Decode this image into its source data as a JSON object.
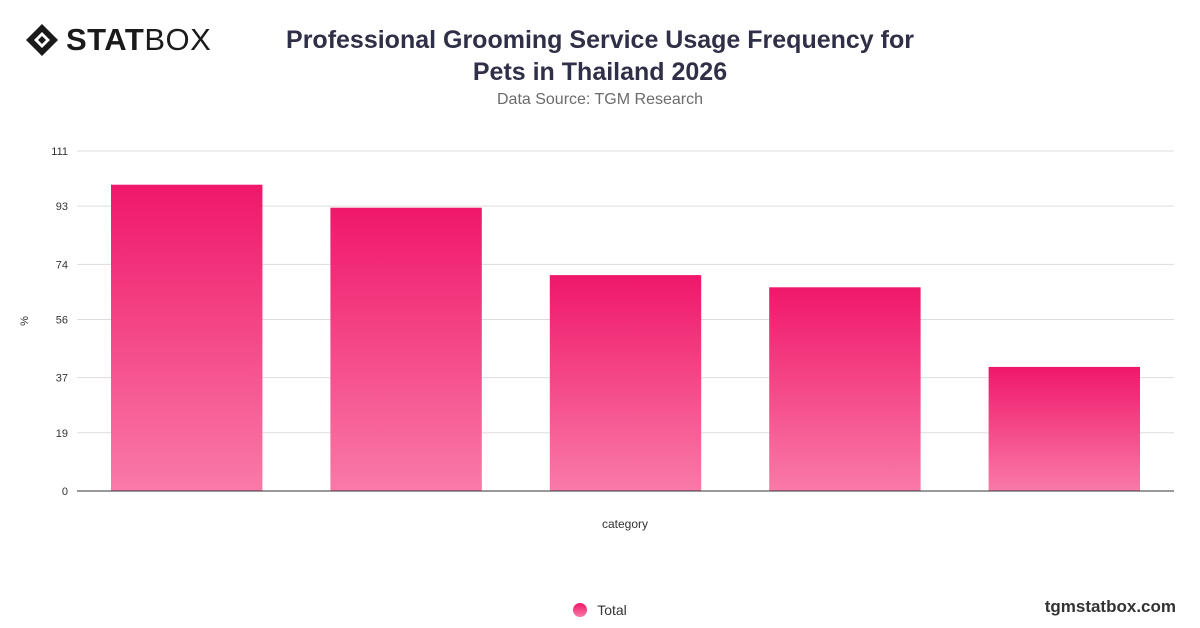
{
  "brand": {
    "logo_bold": "STAT",
    "logo_light": "BOX",
    "website": "tgmstatbox.com"
  },
  "colors": {
    "bar_top": "#f0176a",
    "bar_bottom": "#f97aa8",
    "grid": "#dddddd",
    "axis": "#333333"
  },
  "chart_data": {
    "type": "bar",
    "title": "Professional Grooming Service Usage Frequency for Pets in Thailand 2026",
    "subtitle": "Data Source: TGM Research",
    "xlabel": "category",
    "ylabel": "%",
    "categories": [
      "",
      "",
      "",
      "",
      ""
    ],
    "series": [
      {
        "name": "Total",
        "values": [
          100,
          92.5,
          70.5,
          66.5,
          40.5
        ]
      }
    ],
    "yticks": [
      "0",
      "19",
      "37",
      "56",
      "74",
      "93",
      "111"
    ],
    "ylim": [
      0,
      111
    ],
    "grid": true,
    "legend": "bottom-center"
  }
}
